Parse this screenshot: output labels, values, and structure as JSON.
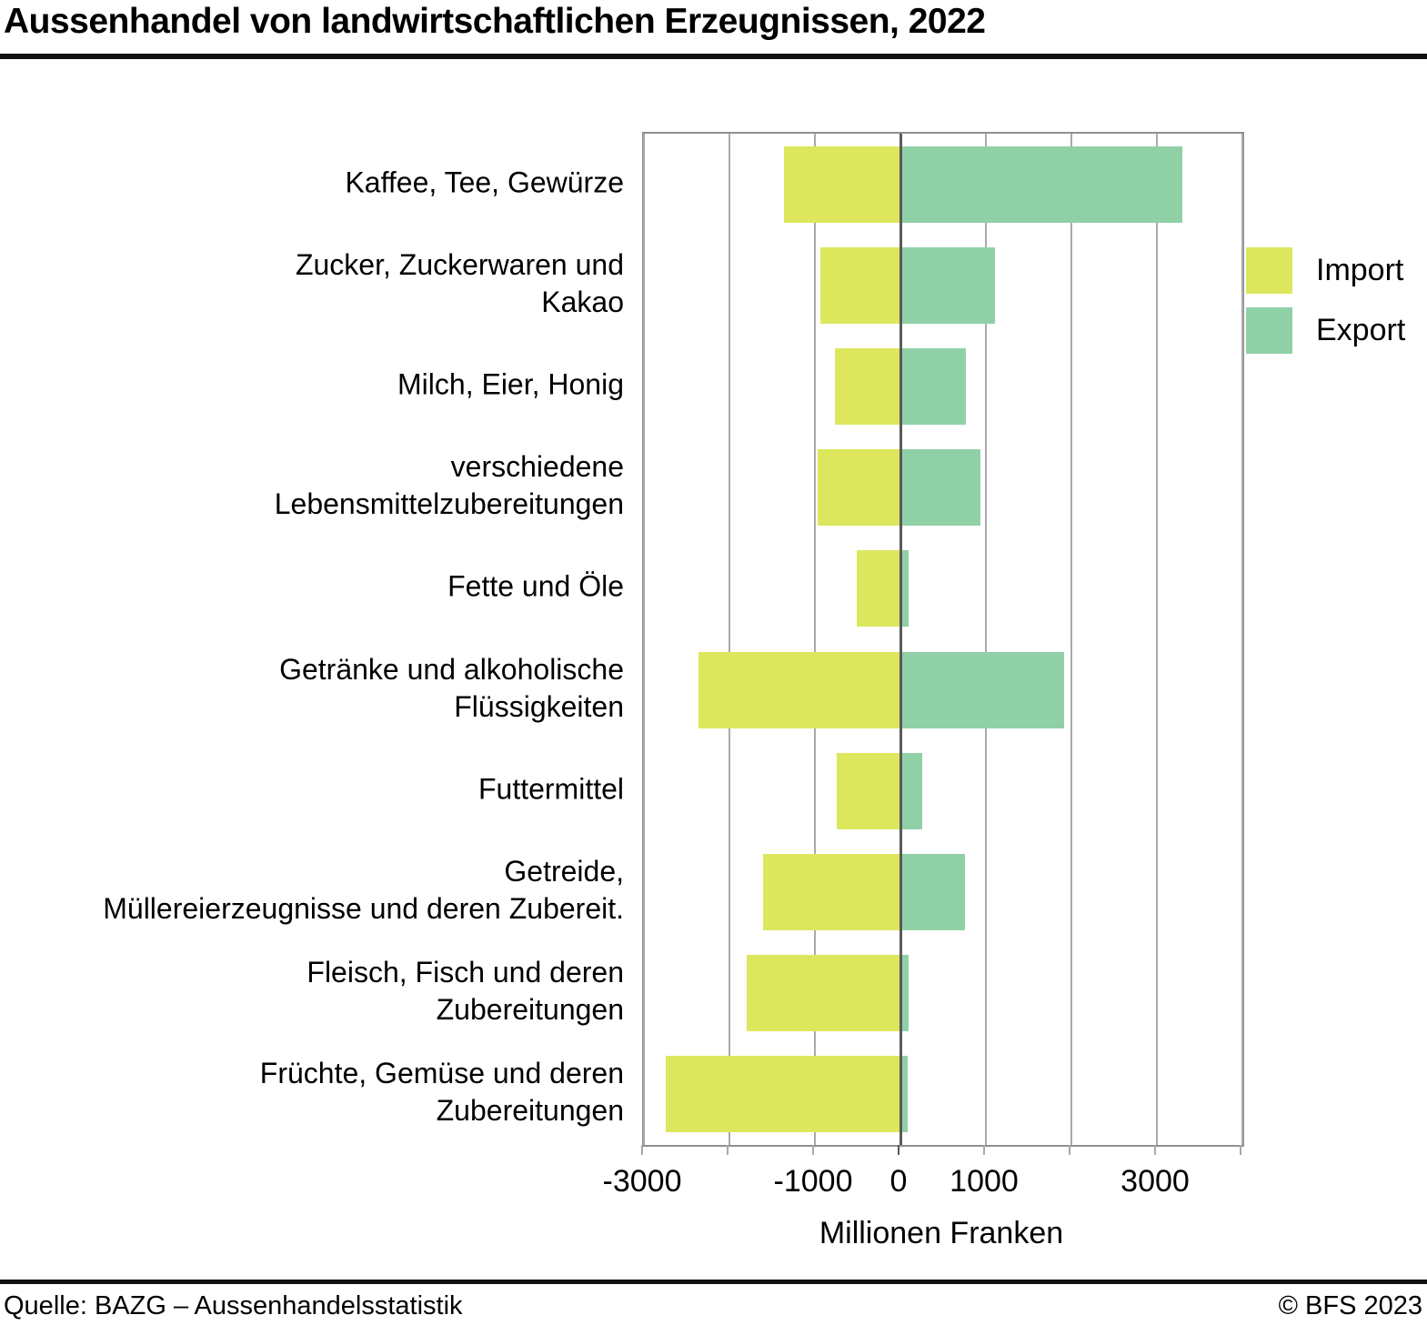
{
  "title": "Aussenhandel von landwirtschaftlichen Erzeugnissen, 2022",
  "legend": {
    "import_label": "Import",
    "export_label": "Export"
  },
  "footer": {
    "source": "Quelle: BAZG – Aussenhandelsstatistik",
    "copyright": "© BFS 2023"
  },
  "colors": {
    "import": "#dde75e",
    "export": "#90d0a7",
    "gridline": "#a9a9a9",
    "zero_line": "#5a5a5a",
    "plot_border": "#8f8f8f"
  },
  "chart_data": {
    "type": "bar",
    "orientation": "horizontal-diverging",
    "title": "Aussenhandel von landwirtschaftlichen Erzeugnissen, 2022",
    "xlabel": "Millionen Franken",
    "xlim": [
      -3000,
      4000
    ],
    "gridline_step": 1000,
    "grid": true,
    "legend_position": "right",
    "xticks": [
      {
        "value": -3000,
        "label": "-3000"
      },
      {
        "value": -1000,
        "label": "-1000"
      },
      {
        "value": 0,
        "label": "0"
      },
      {
        "value": 1000,
        "label": "1000"
      },
      {
        "value": 3000,
        "label": "3000"
      }
    ],
    "categories": [
      {
        "lines": [
          "Kaffee, Tee, Gewürze"
        ]
      },
      {
        "lines": [
          "Zucker, Zuckerwaren und",
          "Kakao"
        ]
      },
      {
        "lines": [
          "Milch, Eier, Honig"
        ]
      },
      {
        "lines": [
          "verschiedene",
          "Lebensmittelzubereitungen"
        ]
      },
      {
        "lines": [
          "Fette und Öle"
        ]
      },
      {
        "lines": [
          "Getränke und alkoholische",
          "Flüssigkeiten"
        ]
      },
      {
        "lines": [
          "Futtermittel"
        ]
      },
      {
        "lines": [
          "Getreide,",
          "Müllereierzeugnisse und deren Zubereit."
        ]
      },
      {
        "lines": [
          "Fleisch, Fisch und deren",
          "Zubereitungen"
        ]
      },
      {
        "lines": [
          "Früchte, Gemüse und deren",
          "Zubereitungen"
        ]
      }
    ],
    "series": [
      {
        "name": "Import",
        "values": [
          -1360,
          -940,
          -770,
          -970,
          -510,
          -2360,
          -740,
          -1610,
          -1800,
          -2740
        ]
      },
      {
        "name": "Export",
        "values": [
          3300,
          1110,
          770,
          940,
          100,
          1910,
          260,
          760,
          100,
          90
        ]
      }
    ]
  }
}
